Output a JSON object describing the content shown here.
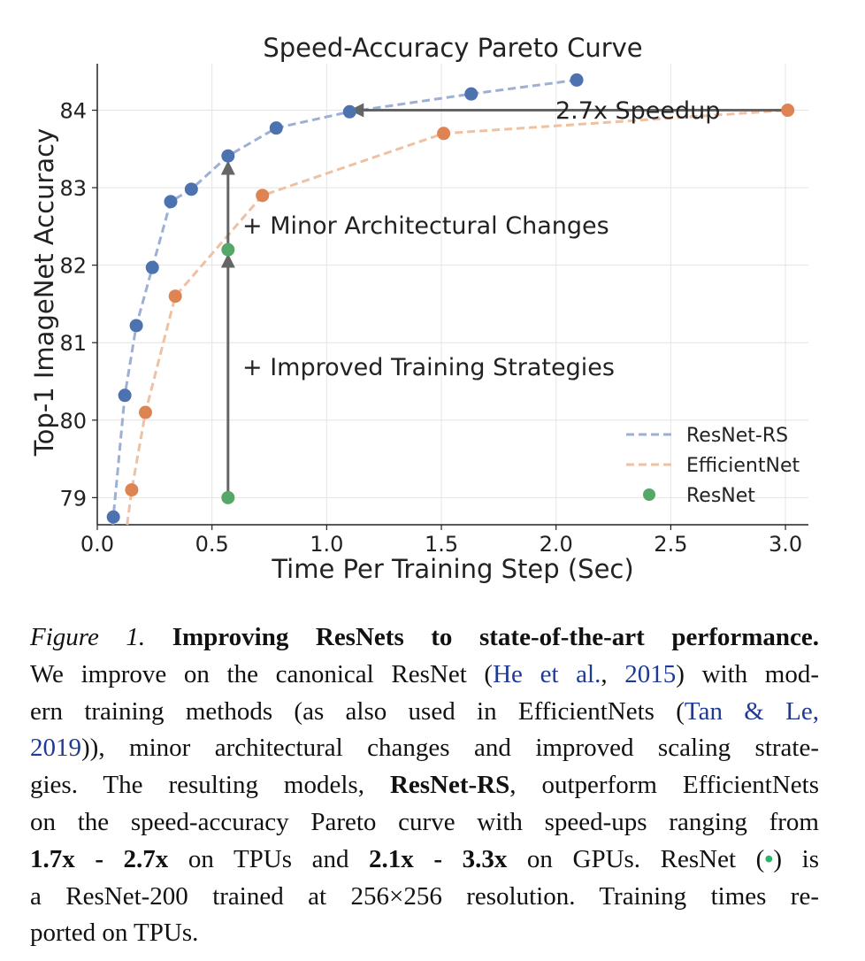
{
  "chart_data": {
    "type": "line",
    "title": "Speed-Accuracy Pareto Curve",
    "xlabel": "Time Per Training Step (Sec)",
    "ylabel": "Top-1 ImageNet Accuracy",
    "xlim": [
      0.0,
      3.1
    ],
    "ylim": [
      78.65,
      84.6
    ],
    "x_ticks": [
      "0.0",
      "0.5",
      "1.0",
      "1.5",
      "2.0",
      "2.5",
      "3.0"
    ],
    "y_ticks": [
      "79",
      "80",
      "81",
      "82",
      "83",
      "84"
    ],
    "grid": true,
    "legend_position": "bottom-right",
    "series": [
      {
        "name": "ResNet-RS",
        "style": "dashed-line-with-markers",
        "color": "#4c72b0",
        "line_color": "#9db0d4",
        "x": [
          0.07,
          0.12,
          0.17,
          0.24,
          0.32,
          0.41,
          0.57,
          0.78,
          1.1,
          1.63,
          2.09
        ],
        "y": [
          78.75,
          80.32,
          81.22,
          81.97,
          82.82,
          82.98,
          83.41,
          83.77,
          83.98,
          84.21,
          84.39
        ],
        "line_extends_to_y": 78.65
      },
      {
        "name": "EfficientNet",
        "style": "dashed-line-with-markers",
        "color": "#dd8452",
        "line_color": "#efc1a3",
        "x": [
          0.15,
          0.21,
          0.34,
          0.72,
          1.51,
          3.01
        ],
        "y": [
          79.1,
          80.1,
          81.6,
          82.9,
          83.7,
          84.0
        ],
        "line_extends_to": [
          0.13,
          78.65
        ]
      },
      {
        "name": "ResNet",
        "style": "markers",
        "color": "#55a868",
        "x": [
          0.57,
          0.57
        ],
        "y": [
          79.0,
          82.2
        ]
      }
    ],
    "annotations": [
      {
        "text": "2.7x Speedup",
        "arrow_from": [
          3.01,
          84.0
        ],
        "arrow_to": [
          1.1,
          84.0
        ],
        "text_anchor": [
          1.95,
          84.15
        ]
      },
      {
        "text": "+ Minor Architectural Changes",
        "arrow_from": [
          0.57,
          82.2
        ],
        "arrow_to": [
          0.57,
          83.35
        ],
        "text_anchor": [
          0.65,
          82.55
        ]
      },
      {
        "text": "+ Improved Training Strategies",
        "arrow_from": [
          0.57,
          79.0
        ],
        "arrow_to": [
          0.57,
          82.15
        ],
        "text_anchor": [
          0.65,
          80.7
        ]
      }
    ]
  },
  "caption": {
    "figure_label": "Figure 1.",
    "title": "Improving ResNets to state-of-the-art performance.",
    "l2_a": "We improve on the canonical ResNet (",
    "l2_cite_a": "He et al.",
    "l2_b": ", ",
    "l2_cite_b": "2015",
    "l2_c": ") with mod-",
    "l3_a": "ern training methods (as also used in EfficientNets (",
    "l3_cite": "Tan & Le,",
    "l4_cite": "2019",
    "l4_a": ")), minor architectural changes and improved scaling strate-",
    "l5_a": "gies. The resulting models, ",
    "l5_bold": "ResNet-RS",
    "l5_b": ", outperform EfficientNets",
    "l6": "on the speed-accuracy Pareto curve with speed-ups ranging from",
    "l7_bold_a": "1.7x - 2.7x",
    "l7_a": " on TPUs and ",
    "l7_bold_b": "2.1x - 3.3x",
    "l7_b": " on GPUs.  ResNet (",
    "l7_dot": "•",
    "l7_c": ") is",
    "l8": "a ResNet-200 trained at 256×256 resolution.  Training times re-",
    "l9": "ported on TPUs."
  }
}
